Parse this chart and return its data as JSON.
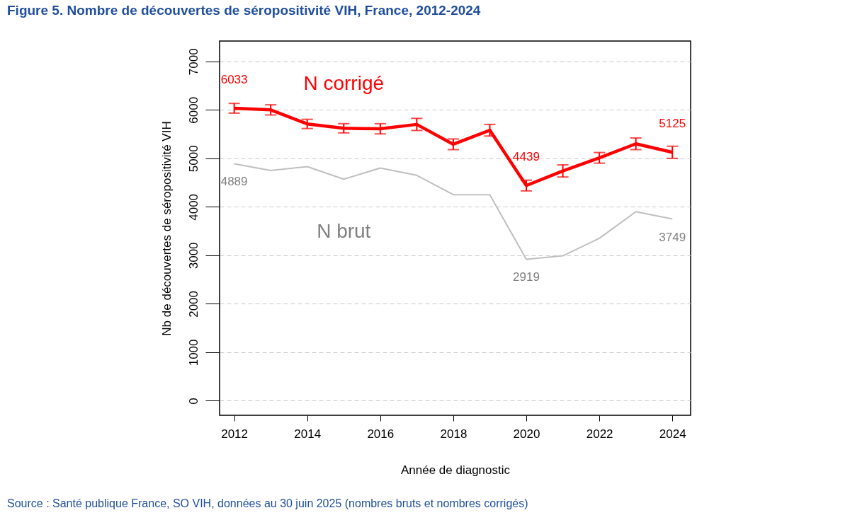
{
  "chart_data": {
    "type": "line",
    "title": "Figure 5. Nombre de découvertes de séropositivité VIH, France, 2012-2024",
    "xlabel": "Année de diagnostic",
    "ylabel": "Nb de découvertes de séropositivité VIH",
    "x": [
      2012,
      2013,
      2014,
      2015,
      2016,
      2017,
      2018,
      2019,
      2020,
      2021,
      2022,
      2023,
      2024
    ],
    "series": [
      {
        "name": "N corrigé",
        "color": "#ff0000",
        "values": [
          6033,
          6000,
          5710,
          5620,
          5610,
          5700,
          5290,
          5580,
          4439,
          4740,
          5010,
          5300,
          5125
        ],
        "errors": [
          100,
          105,
          95,
          95,
          105,
          125,
          110,
          120,
          110,
          125,
          110,
          120,
          125
        ],
        "value_labels": [
          "6033",
          null,
          null,
          null,
          null,
          null,
          null,
          null,
          "4439",
          null,
          null,
          null,
          "5125"
        ]
      },
      {
        "name": "N brut",
        "color": "#bfbfbf",
        "values": [
          4889,
          4750,
          4830,
          4570,
          4800,
          4650,
          4250,
          4250,
          2919,
          2990,
          3350,
          3900,
          3749
        ],
        "value_labels": [
          "4889",
          null,
          null,
          null,
          null,
          null,
          null,
          null,
          "2919",
          null,
          null,
          null,
          "3749"
        ]
      }
    ],
    "xlim": [
      2011.6,
      2024.5
    ],
    "xticks": [
      2012,
      2014,
      2016,
      2018,
      2020,
      2022,
      2024
    ],
    "ylim": [
      -300,
      7420
    ],
    "yticks": [
      0,
      1000,
      2000,
      3000,
      4000,
      5000,
      6000,
      7000
    ],
    "grid": "y",
    "legend": false,
    "annotations": [
      "Source : Santé publique France, SO VIH, données au 30 juin 2025 (nombres bruts et nombres corrigés)"
    ]
  }
}
